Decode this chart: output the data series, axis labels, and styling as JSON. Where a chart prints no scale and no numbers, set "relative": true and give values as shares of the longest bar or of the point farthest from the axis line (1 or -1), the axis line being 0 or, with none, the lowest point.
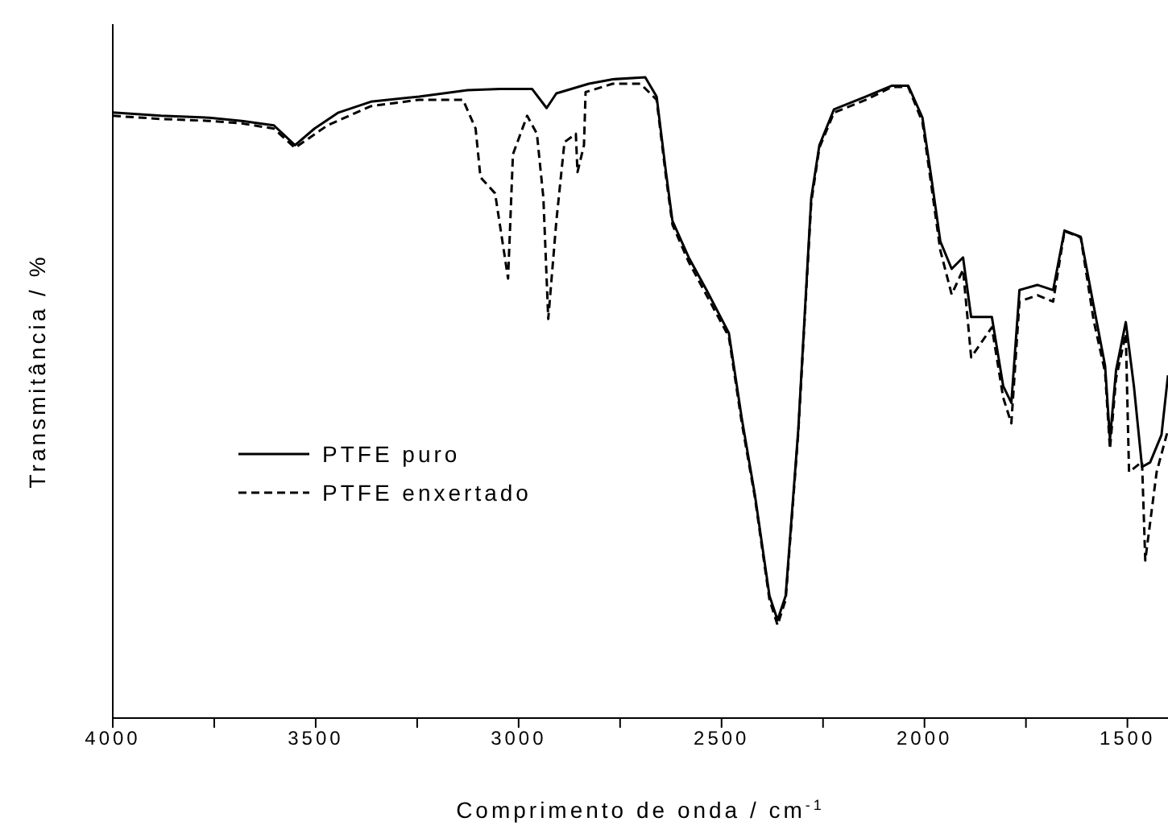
{
  "chart_data": {
    "type": "line",
    "relative": true,
    "xlabel": "Comprimento de onda / cm$^{-1}$",
    "ylabel": "Transmitância / %",
    "legend": "left",
    "marker": "none",
    "xlim": [
      4000,
      1400
    ],
    "xticks": [
      4000,
      {
        "value": 3750,
        "label": null
      },
      3500,
      {
        "value": 3250,
        "label": null
      },
      3000,
      {
        "value": 2750,
        "label": null
      },
      2500,
      {
        "value": 2250,
        "label": null
      },
      2000,
      {
        "value": 1750,
        "label": null
      },
      1500
    ],
    "series": [
      {
        "name": "PTFE puro",
        "color": "#000000",
        "line_style": "solid",
        "x": [
          4000,
          3881,
          3762,
          3682,
          3603,
          3551,
          3503,
          3444,
          3364,
          3245,
          3126,
          3046,
          2967,
          2931,
          2907,
          2827,
          2768,
          2688,
          2660,
          2637,
          2621,
          2581,
          2537,
          2482,
          2450,
          2418,
          2382,
          2362,
          2342,
          2311,
          2279,
          2259,
          2223,
          2144,
          2080,
          2040,
          2005,
          1985,
          1961,
          1933,
          1905,
          1885,
          1834,
          1806,
          1786,
          1766,
          1722,
          1683,
          1655,
          1615,
          1583,
          1555,
          1543,
          1528,
          1504,
          1484,
          1464,
          1444,
          1416,
          1400
        ],
        "values": [
          0.945,
          0.94,
          0.937,
          0.932,
          0.925,
          0.894,
          0.92,
          0.945,
          0.962,
          0.97,
          0.98,
          0.982,
          0.982,
          0.952,
          0.975,
          0.99,
          0.997,
          1,
          0.97,
          0.852,
          0.776,
          0.719,
          0.668,
          0.601,
          0.467,
          0.349,
          0.191,
          0.153,
          0.191,
          0.45,
          0.812,
          0.894,
          0.95,
          0.97,
          0.987,
          0.987,
          0.937,
          0.852,
          0.744,
          0.701,
          0.719,
          0.626,
          0.626,
          0.518,
          0.492,
          0.668,
          0.676,
          0.668,
          0.761,
          0.751,
          0.643,
          0.55,
          0.435,
          0.543,
          0.618,
          0.518,
          0.392,
          0.399,
          0.442,
          0.535
        ]
      },
      {
        "name": "PTFE enxertado",
        "color": "#000000",
        "line_style": "dashed",
        "x": [
          4000,
          3881,
          3762,
          3682,
          3603,
          3551,
          3471,
          3364,
          3245,
          3137,
          3106,
          3094,
          3058,
          3026,
          3014,
          2979,
          2955,
          2939,
          2927,
          2907,
          2887,
          2859,
          2855,
          2839,
          2835,
          2768,
          2700,
          2660,
          2637,
          2621,
          2581,
          2537,
          2482,
          2450,
          2418,
          2382,
          2362,
          2342,
          2311,
          2279,
          2259,
          2223,
          2144,
          2080,
          2040,
          2005,
          1985,
          1961,
          1933,
          1905,
          1885,
          1834,
          1806,
          1786,
          1766,
          1722,
          1683,
          1655,
          1615,
          1583,
          1555,
          1543,
          1528,
          1504,
          1496,
          1464,
          1456,
          1428,
          1400
        ],
        "values": [
          0.94,
          0.935,
          0.932,
          0.928,
          0.92,
          0.89,
          0.925,
          0.955,
          0.965,
          0.965,
          0.92,
          0.844,
          0.819,
          0.686,
          0.88,
          0.94,
          0.912,
          0.812,
          0.623,
          0.776,
          0.899,
          0.912,
          0.852,
          0.894,
          0.977,
          0.99,
          0.99,
          0.965,
          0.845,
          0.77,
          0.712,
          0.66,
          0.595,
          0.46,
          0.345,
          0.185,
          0.145,
          0.185,
          0.445,
          0.805,
          0.89,
          0.945,
          0.965,
          0.985,
          0.985,
          0.93,
          0.84,
          0.73,
          0.661,
          0.7,
          0.563,
          0.61,
          0.5,
          0.46,
          0.65,
          0.66,
          0.65,
          0.76,
          0.75,
          0.62,
          0.54,
          0.42,
          0.53,
          0.6,
          0.384,
          0.4,
          0.246,
          0.384,
          0.45
        ]
      }
    ]
  }
}
